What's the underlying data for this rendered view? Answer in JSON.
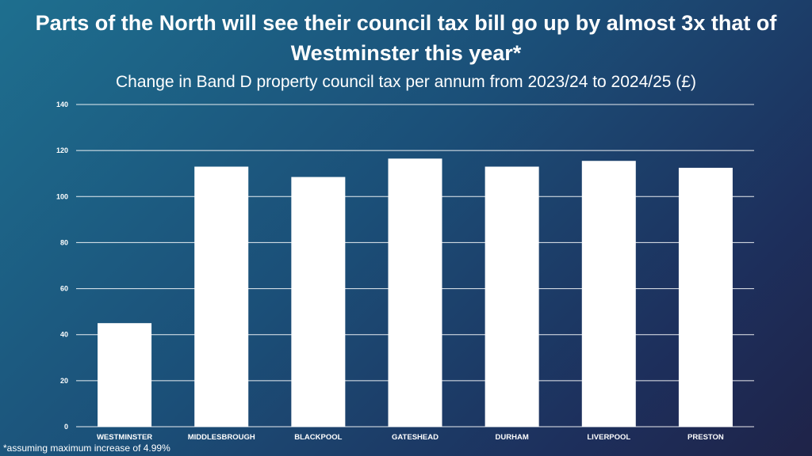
{
  "title": "Parts of the North will see their council tax bill go up by almost 3x that of Westminster this year*",
  "subtitle": "Change in Band D property council tax per annum from 2023/24 to 2024/25 (£)",
  "footnote": "*assuming maximum increase of 4.99%",
  "chart_data": {
    "type": "bar",
    "title": "Parts of the North will see their council tax bill go up by almost 3x that of Westminster this year*",
    "subtitle": "Change in Band D property council tax per annum from 2023/24 to 2024/25 (£)",
    "categories": [
      "WESTMINSTER",
      "MIDDLESBROUGH",
      "BLACKPOOL",
      "GATESHEAD",
      "DURHAM",
      "LIVERPOOL",
      "PRESTON"
    ],
    "values": [
      45,
      113,
      108.5,
      116.5,
      113,
      115.5,
      112.5
    ],
    "ylim": [
      0,
      140
    ],
    "yticks": [
      0,
      20,
      40,
      60,
      80,
      100,
      120,
      140
    ],
    "grid": true,
    "legend": "none",
    "colors": {
      "bar": "#ffffff",
      "grid": "#ffffff",
      "text": "#ffffff"
    }
  }
}
